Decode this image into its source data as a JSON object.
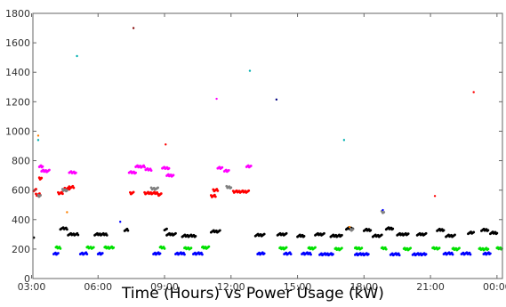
{
  "chart_data": {
    "type": "scatter",
    "title": "Time (Hours) vs Power Usage (kW)",
    "xlabel": "",
    "ylabel": "",
    "x_unit": "hours",
    "xlim": [
      3.0,
      24.6
    ],
    "ylim": [
      0,
      1800
    ],
    "y_ticks": [
      0,
      200,
      400,
      600,
      800,
      1000,
      1200,
      1400,
      1600,
      1800
    ],
    "x_ticks": [
      {
        "value": 3,
        "label": "03:00"
      },
      {
        "value": 6,
        "label": "06:00"
      },
      {
        "value": 9,
        "label": "09:00"
      },
      {
        "value": 12,
        "label": "12:00"
      },
      {
        "value": 15,
        "label": "15:00"
      },
      {
        "value": 18,
        "label": "18:00"
      },
      {
        "value": 21,
        "label": "21:00"
      },
      {
        "value": 24,
        "label": "00:00"
      }
    ],
    "grid": false,
    "legend": "none",
    "series": [
      {
        "color": "#000000",
        "runs": [
          [
            3.05,
            3.1,
            280
          ],
          [
            4.3,
            4.6,
            340
          ],
          [
            4.65,
            5.1,
            300
          ],
          [
            5.85,
            6.4,
            300
          ],
          [
            7.2,
            7.35,
            330
          ],
          [
            9.0,
            9.1,
            335
          ],
          [
            9.1,
            9.5,
            300
          ],
          [
            9.8,
            10.4,
            290
          ],
          [
            11.1,
            11.5,
            320
          ],
          [
            13.1,
            13.5,
            295
          ],
          [
            14.1,
            14.5,
            300
          ],
          [
            15.0,
            15.3,
            290
          ],
          [
            15.8,
            16.2,
            300
          ],
          [
            16.5,
            17.0,
            290
          ],
          [
            17.2,
            17.5,
            340
          ],
          [
            18.0,
            18.3,
            330
          ],
          [
            18.4,
            18.8,
            290
          ],
          [
            19.0,
            19.3,
            340
          ],
          [
            19.5,
            20.0,
            300
          ],
          [
            20.4,
            20.8,
            300
          ],
          [
            21.3,
            21.6,
            330
          ],
          [
            21.7,
            22.1,
            290
          ],
          [
            22.7,
            22.95,
            310
          ],
          [
            23.3,
            23.6,
            330
          ],
          [
            23.7,
            24.0,
            310
          ],
          [
            24.3,
            24.6,
            300
          ]
        ]
      },
      {
        "color": "#00e000",
        "runs": [
          [
            4.1,
            4.3,
            210
          ],
          [
            5.5,
            5.8,
            210
          ],
          [
            6.3,
            6.7,
            210
          ],
          [
            8.8,
            9.0,
            210
          ],
          [
            9.9,
            10.2,
            205
          ],
          [
            10.7,
            11.0,
            210
          ],
          [
            14.2,
            14.5,
            205
          ],
          [
            15.5,
            15.8,
            205
          ],
          [
            16.7,
            17.0,
            200
          ],
          [
            17.6,
            17.9,
            205
          ],
          [
            18.8,
            19.0,
            205
          ],
          [
            19.8,
            20.1,
            200
          ],
          [
            21.1,
            21.4,
            205
          ],
          [
            22.0,
            22.3,
            200
          ],
          [
            23.2,
            23.6,
            200
          ],
          [
            24.0,
            24.3,
            205
          ]
        ]
      },
      {
        "color": "#0000ff",
        "runs": [
          [
            4.0,
            4.2,
            170
          ],
          [
            5.2,
            5.5,
            170
          ],
          [
            6.0,
            6.2,
            170
          ],
          [
            8.5,
            8.8,
            170
          ],
          [
            9.5,
            9.9,
            170
          ],
          [
            10.3,
            10.7,
            170
          ],
          [
            13.2,
            13.5,
            170
          ],
          [
            14.4,
            14.7,
            170
          ],
          [
            15.2,
            15.6,
            170
          ],
          [
            16.0,
            16.6,
            165
          ],
          [
            17.6,
            18.2,
            165
          ],
          [
            19.2,
            19.6,
            165
          ],
          [
            20.2,
            20.8,
            165
          ],
          [
            21.6,
            22.0,
            170
          ],
          [
            22.4,
            22.8,
            170
          ],
          [
            23.4,
            23.7,
            170
          ],
          [
            24.4,
            24.6,
            170
          ]
        ]
      },
      {
        "color": "#ff0000",
        "runs": [
          [
            3.05,
            3.2,
            600
          ],
          [
            3.2,
            3.4,
            570
          ],
          [
            3.35,
            3.45,
            680
          ],
          [
            4.2,
            4.4,
            580
          ],
          [
            4.5,
            4.7,
            610
          ],
          [
            4.7,
            4.9,
            620
          ],
          [
            7.45,
            7.6,
            580
          ],
          [
            8.1,
            8.7,
            580
          ],
          [
            8.7,
            8.85,
            570
          ],
          [
            11.1,
            11.3,
            560
          ],
          [
            11.2,
            11.4,
            600
          ],
          [
            12.1,
            12.8,
            590
          ]
        ]
      },
      {
        "color": "#ff00ff",
        "runs": [
          [
            3.35,
            3.5,
            760
          ],
          [
            3.45,
            3.8,
            730
          ],
          [
            4.7,
            5.0,
            720
          ],
          [
            7.4,
            7.7,
            720
          ],
          [
            7.7,
            8.1,
            760
          ],
          [
            8.15,
            8.4,
            740
          ],
          [
            8.9,
            9.2,
            750
          ],
          [
            9.1,
            9.4,
            700
          ],
          [
            11.4,
            11.6,
            750
          ],
          [
            11.7,
            11.9,
            730
          ],
          [
            12.7,
            12.9,
            760
          ]
        ]
      },
      {
        "color": "#808080",
        "runs": [
          [
            3.3,
            3.4,
            560
          ],
          [
            4.4,
            4.6,
            600
          ],
          [
            8.4,
            8.7,
            610
          ],
          [
            11.8,
            12.0,
            620
          ],
          [
            17.4,
            17.5,
            330
          ],
          [
            18.8,
            18.9,
            450
          ]
        ]
      }
    ],
    "outliers": [
      {
        "x": 3.3,
        "y": 940,
        "color": "#00b0b0"
      },
      {
        "x": 3.3,
        "y": 970,
        "color": "#ff8000"
      },
      {
        "x": 5.05,
        "y": 1510,
        "color": "#00b0b0"
      },
      {
        "x": 7.6,
        "y": 1700,
        "color": "#800000"
      },
      {
        "x": 9.05,
        "y": 910,
        "color": "#ff0000"
      },
      {
        "x": 11.35,
        "y": 1220,
        "color": "#ff00ff"
      },
      {
        "x": 12.85,
        "y": 1410,
        "color": "#00b0b0"
      },
      {
        "x": 14.05,
        "y": 1215,
        "color": "#000080"
      },
      {
        "x": 17.1,
        "y": 940,
        "color": "#00b0b0"
      },
      {
        "x": 21.2,
        "y": 560,
        "color": "#ff0000"
      },
      {
        "x": 22.95,
        "y": 1265,
        "color": "#ff0000"
      },
      {
        "x": 24.5,
        "y": 380,
        "color": "#ff8000"
      },
      {
        "x": 7.0,
        "y": 385,
        "color": "#0000ff"
      },
      {
        "x": 4.6,
        "y": 450,
        "color": "#ff8000"
      },
      {
        "x": 17.35,
        "y": 350,
        "color": "#ff8000"
      },
      {
        "x": 18.85,
        "y": 465,
        "color": "#0000ff"
      }
    ]
  }
}
